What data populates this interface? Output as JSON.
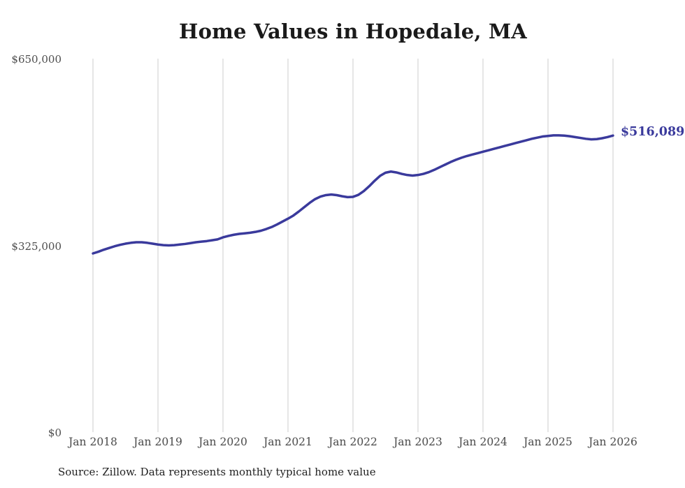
{
  "style": {
    "accent": "#3a3a9c",
    "grid": "#cccccc",
    "title_color": "#1a1a1a",
    "tick_color": "#4a4a4a"
  },
  "source_note": "Source: Zillow. Data represents monthly typical home value",
  "chart_data": {
    "type": "line",
    "title": "Home Values in Hopedale, MA",
    "xlabel": "",
    "ylabel": "",
    "ylim": [
      0,
      650000
    ],
    "grid": "vertical-only",
    "legend": "none",
    "end_label": "$516,089",
    "x_tick_labels": [
      "Jan 2018",
      "Jan 2019",
      "Jan 2020",
      "Jan 2021",
      "Jan 2022",
      "Jan 2023",
      "Jan 2024",
      "Jan 2025",
      "Jan 2026"
    ],
    "y_ticks": [
      {
        "label": "$0",
        "value": 0
      },
      {
        "label": "$325,000",
        "value": 325000
      },
      {
        "label": "$650,000",
        "value": 650000
      }
    ],
    "series_name": "Monthly typical home value",
    "x_start_month": "2018-01",
    "x_end_month": "2026-01",
    "values": [
      311000,
      314000,
      317500,
      320500,
      323500,
      326000,
      328000,
      329500,
      330500,
      330500,
      329500,
      328000,
      326500,
      325500,
      325000,
      325500,
      326500,
      327500,
      329000,
      330500,
      331500,
      332500,
      334000,
      335500,
      339000,
      341500,
      343500,
      345000,
      346000,
      347000,
      348500,
      350500,
      353500,
      357000,
      361500,
      366500,
      371500,
      377000,
      384000,
      391500,
      399000,
      405500,
      410000,
      412500,
      413500,
      412500,
      410500,
      409000,
      409500,
      413000,
      419500,
      428000,
      437500,
      446000,
      451500,
      453500,
      452000,
      449500,
      447500,
      446500,
      447500,
      449500,
      452500,
      456500,
      461000,
      465500,
      470000,
      474000,
      477500,
      480500,
      483000,
      485500,
      488000,
      490500,
      493000,
      495500,
      498000,
      500500,
      503000,
      505500,
      508000,
      510500,
      512500,
      514500,
      515500,
      516500,
      516500,
      516000,
      515000,
      513500,
      512000,
      510500,
      509500,
      510000,
      511500,
      513500,
      516089
    ]
  }
}
